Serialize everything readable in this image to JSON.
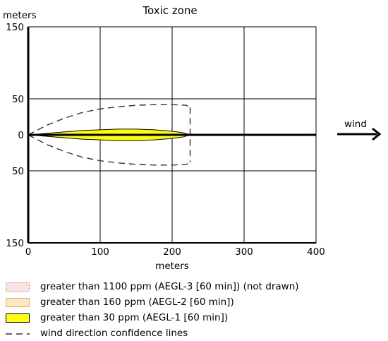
{
  "chart_data": {
    "type": "area",
    "title": "Toxic zone",
    "xlabel": "meters",
    "ylabel": "meters",
    "xlim": [
      0,
      400
    ],
    "ylim": [
      -150,
      150
    ],
    "x_ticks": [
      0,
      100,
      200,
      300,
      400
    ],
    "x_tick_labels": [
      "0",
      "100",
      "200",
      "300",
      "400"
    ],
    "y_ticks": [
      150,
      50,
      0,
      -50,
      -150
    ],
    "y_tick_labels": [
      "150",
      "50",
      "0",
      "50",
      "150"
    ],
    "grid": true,
    "wind_label": "wind",
    "series": [
      {
        "name": "greater than 30 ppm (AEGL-1 [60 min])",
        "style": "filled",
        "color": "#ffff00",
        "outline": "#000000",
        "x": [
          0,
          25,
          50,
          75,
          100,
          125,
          150,
          175,
          200,
          215,
          225
        ],
        "upper": [
          0,
          2,
          4,
          6,
          7,
          8,
          8,
          7,
          5,
          3,
          0
        ],
        "lower": [
          0,
          -2,
          -4,
          -6,
          -7,
          -8,
          -8,
          -7,
          -5,
          -3,
          0
        ]
      },
      {
        "name": "wind direction confidence lines",
        "style": "dashed",
        "color": "#333333",
        "x": [
          0,
          25,
          50,
          75,
          100,
          125,
          150,
          175,
          200,
          220,
          225
        ],
        "upper": [
          0,
          13,
          23,
          31,
          36,
          39,
          41,
          42,
          42,
          41,
          38
        ],
        "lower": [
          0,
          -13,
          -23,
          -31,
          -36,
          -39,
          -41,
          -42,
          -42,
          -41,
          -38
        ],
        "cap_x": 225
      }
    ],
    "wind_line": {
      "x": [
        0,
        400
      ],
      "y": [
        0,
        0
      ]
    }
  },
  "legend": [
    {
      "key": "aegl3",
      "label": "greater than 1100 ppm (AEGL-3 [60 min]) (not drawn)",
      "fill": "#fbe3e3",
      "border": "#e08080",
      "dotted": true
    },
    {
      "key": "aegl2",
      "label": "greater than 160 ppm (AEGL-2 [60 min])",
      "fill": "#fde7c4",
      "border": "#e0b070",
      "dotted": false
    },
    {
      "key": "aegl1",
      "label": "greater than 30 ppm (AEGL-1 [60 min])",
      "fill": "#ffff00",
      "border": "#000000",
      "dotted": false
    },
    {
      "key": "conf",
      "label": "wind direction confidence lines",
      "dashed": true
    }
  ]
}
